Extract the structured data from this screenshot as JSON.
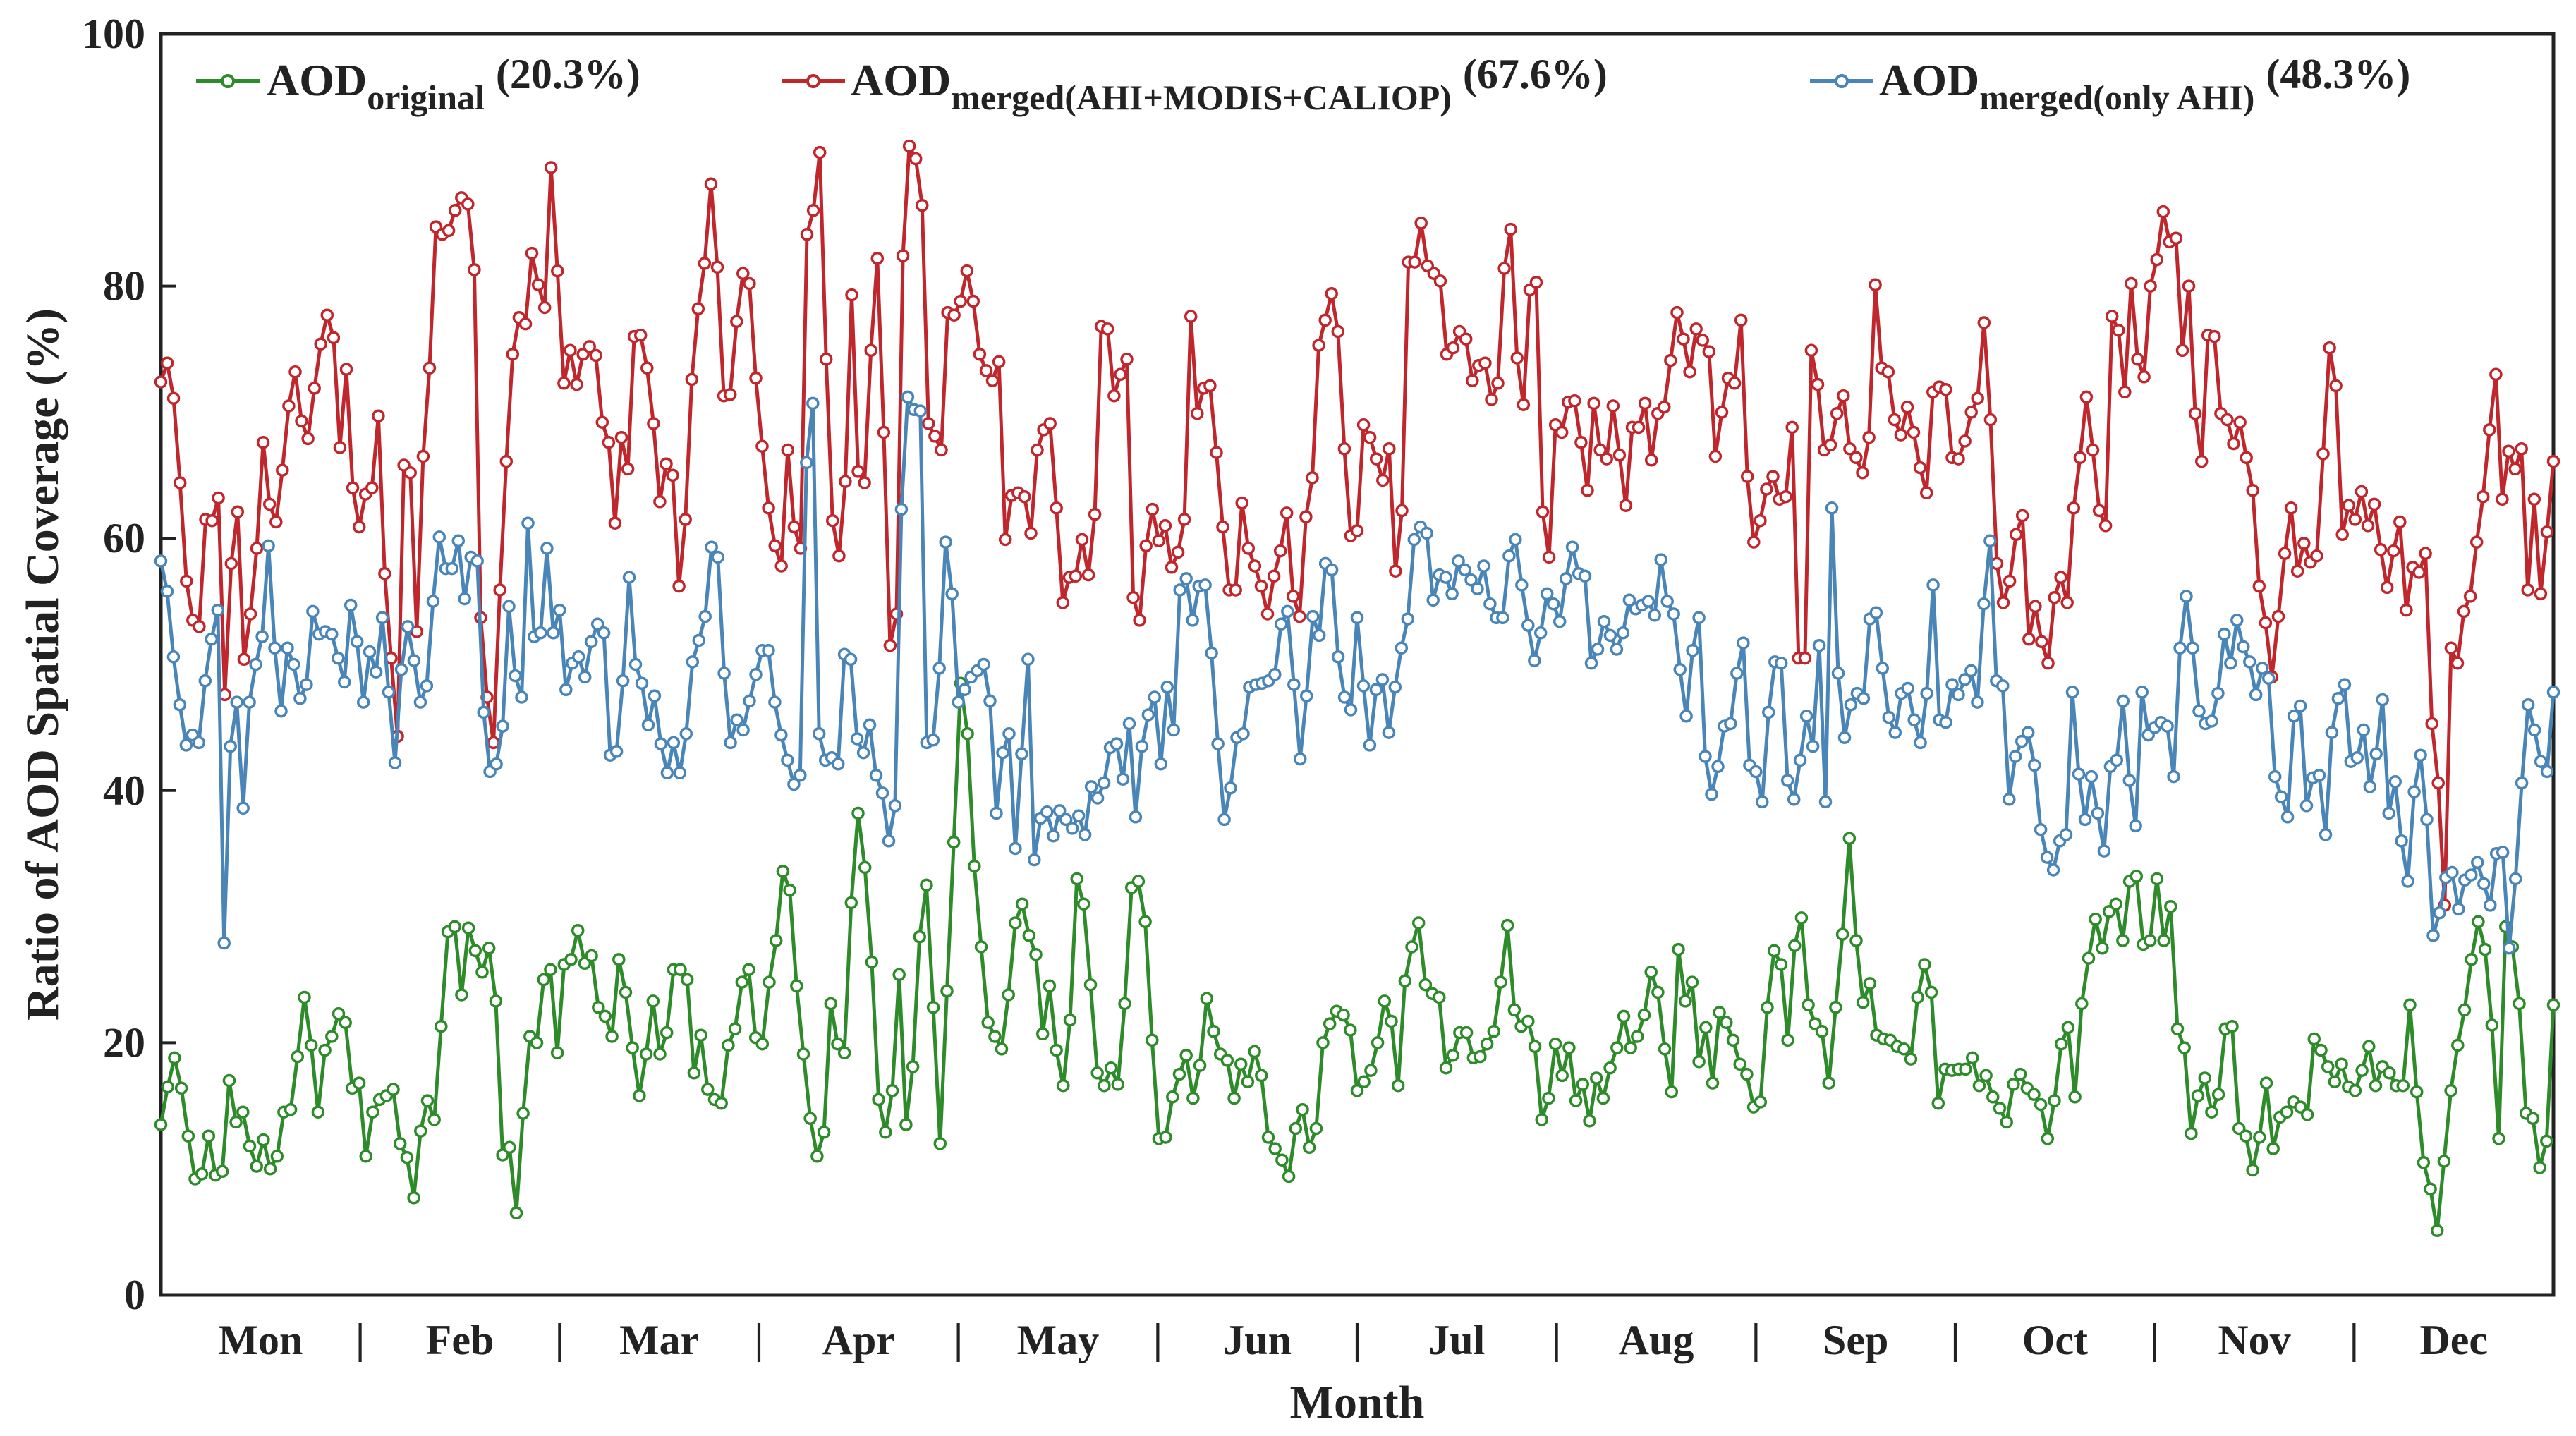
{
  "chart_data": {
    "type": "line",
    "title": "",
    "xlabel": "Month",
    "ylabel": "Ratio of AOD Spatial Coverage (%)",
    "ylim": [
      0,
      100
    ],
    "yticks": [
      "0",
      "20",
      "40",
      "60",
      "80",
      "100"
    ],
    "xlim": [
      0,
      365
    ],
    "month_labels": [
      "Mon",
      "Feb",
      "Mar",
      "Apr",
      "May",
      "Jun",
      "Jul",
      "Aug",
      "Sep",
      "Oct",
      "Nov",
      "Dec"
    ],
    "month_separator": "|",
    "legend_position": "top",
    "series": [
      {
        "name": "AOD original (20.3%)",
        "label_main": "AOD",
        "label_sub": "original",
        "label_pct": "(20.3%)",
        "color": "#2e8b2a",
        "values": [
          13.5,
          16.5,
          18.8,
          16.4,
          12.6,
          9.2,
          9.6,
          12.6,
          9.5,
          9.8,
          17.0,
          13.7,
          14.5,
          11.8,
          10.2,
          12.3,
          10.0,
          11.0,
          14.5,
          14.7,
          18.9,
          23.6,
          19.8,
          14.5,
          19.4,
          20.5,
          22.3,
          21.6,
          16.4,
          16.8,
          11.0,
          14.5,
          15.5,
          15.8,
          16.3,
          12.0,
          10.9,
          7.7,
          13.0,
          15.4,
          13.9,
          21.3,
          28.8,
          29.2,
          23.8,
          29.1,
          27.3,
          25.6,
          27.5,
          23.3,
          11.1,
          11.7,
          6.5,
          14.4,
          20.5,
          20.0,
          25.0,
          25.8,
          19.2,
          26.2,
          26.6,
          28.9,
          26.3,
          26.9,
          22.8,
          22.1,
          20.5,
          26.6,
          24.0,
          19.6,
          15.8,
          19.1,
          23.3,
          19.1,
          20.8,
          25.8,
          25.8,
          25.0,
          17.6,
          20.6,
          16.3,
          15.5,
          15.2,
          19.8,
          21.1,
          24.8,
          25.8,
          20.4,
          19.9,
          24.8,
          28.1,
          33.6,
          32.1,
          24.5,
          19.1,
          14.0,
          11.0,
          12.9,
          23.1,
          19.9,
          19.2,
          31.1,
          38.2,
          33.9,
          26.4,
          15.5,
          12.9,
          16.2,
          25.4,
          13.5,
          18.1,
          28.4,
          32.5,
          22.8,
          12.0,
          24.1,
          35.9,
          48.5,
          44.5,
          34.0,
          27.6,
          21.6,
          20.5,
          19.5,
          23.8,
          29.5,
          31.0,
          28.5,
          27.0,
          20.7,
          24.5,
          19.4,
          16.6,
          21.8,
          33.0,
          31.0,
          24.6,
          17.6,
          16.6,
          18.0,
          16.7,
          23.1,
          32.3,
          32.8,
          29.6,
          20.2,
          12.4,
          12.5,
          15.7,
          17.5,
          19.0,
          15.6,
          18.2,
          23.5,
          20.9,
          19.1,
          18.6,
          15.6,
          18.3,
          16.9,
          19.3,
          17.4,
          12.5,
          11.6,
          10.7,
          9.4,
          13.2,
          14.7,
          11.7,
          13.2,
          20.0,
          21.5,
          22.5,
          22.2,
          21.0,
          16.2,
          16.9,
          17.8,
          20.0,
          23.3,
          21.7,
          16.6,
          24.9,
          27.6,
          29.5,
          24.6,
          23.9,
          23.6,
          18.0,
          19.0,
          20.8,
          20.8,
          18.8,
          18.9,
          19.9,
          20.9,
          24.8,
          29.3,
          22.6,
          21.3,
          21.7,
          19.7,
          13.9,
          15.6,
          19.9,
          17.4,
          19.6,
          15.4,
          16.7,
          13.8,
          17.2,
          15.6,
          18.0,
          19.6,
          22.1,
          19.6,
          20.5,
          22.2,
          25.6,
          24.0,
          19.5,
          16.1,
          27.4,
          23.3,
          24.8,
          18.5,
          21.2,
          16.8,
          22.4,
          21.6,
          20.2,
          18.3,
          17.5,
          14.9,
          15.3,
          22.8,
          27.3,
          26.2,
          20.2,
          27.7,
          29.9,
          23.0,
          21.5,
          20.9,
          16.8,
          22.8,
          28.6,
          36.2,
          28.1,
          23.2,
          24.7,
          20.6,
          20.3,
          20.2,
          19.7,
          19.5,
          18.7,
          23.6,
          26.2,
          24.0,
          15.2,
          17.9,
          17.8,
          17.9,
          17.9,
          18.8,
          16.6,
          17.4,
          15.7,
          14.8,
          13.7,
          16.7,
          17.5,
          16.4,
          15.9,
          15.1,
          12.4,
          15.4,
          19.9,
          21.2,
          15.7,
          23.1,
          26.7,
          29.8,
          27.5,
          30.4,
          31.0,
          28.1,
          32.8,
          33.2,
          27.8,
          28.1,
          33.0,
          28.1,
          30.8,
          21.1,
          19.6,
          12.8,
          15.8,
          17.2,
          14.5,
          15.9,
          21.1,
          21.3,
          13.2,
          12.6,
          9.9,
          12.5,
          16.8,
          11.6,
          14.1,
          14.5,
          15.3,
          14.9,
          14.3,
          20.3,
          19.4,
          18.1,
          16.9,
          18.3,
          16.5,
          16.2,
          17.8,
          19.7,
          16.6,
          18.1,
          17.6,
          16.6,
          16.6,
          23.0,
          16.1,
          10.5,
          8.4,
          5.1,
          10.6,
          16.2,
          19.8,
          22.6,
          26.6,
          29.6,
          27.4,
          21.4,
          12.4,
          29.2,
          27.6,
          23.1,
          14.4,
          14.0,
          10.1,
          12.2,
          23.0
        ]
      },
      {
        "name": "AOD merged(AHI+MODIS+CALIOP) (67.6%)",
        "label_main": "AOD",
        "label_sub": "merged(AHI+MODIS+CALIOP)",
        "label_pct": "(67.6%)",
        "color": "#c0272d",
        "values": [
          72.4,
          73.9,
          71.1,
          64.4,
          56.6,
          53.5,
          53.0,
          61.5,
          61.4,
          63.2,
          47.6,
          58.0,
          62.1,
          50.4,
          54.0,
          59.2,
          67.6,
          62.7,
          61.3,
          65.4,
          70.5,
          73.2,
          69.3,
          67.9,
          71.9,
          75.4,
          77.7,
          75.9,
          67.2,
          73.4,
          64.0,
          60.9,
          63.5,
          64.0,
          69.7,
          57.2,
          50.5,
          44.3,
          65.8,
          65.2,
          52.6,
          66.5,
          73.5,
          84.7,
          84.1,
          84.4,
          86.0,
          87.0,
          86.5,
          81.3,
          53.7,
          47.4,
          43.8,
          55.9,
          66.1,
          74.6,
          77.5,
          77.0,
          82.6,
          80.1,
          78.3,
          89.4,
          81.2,
          72.3,
          74.9,
          72.2,
          74.6,
          75.2,
          74.5,
          69.2,
          67.6,
          61.2,
          68.0,
          65.5,
          76.0,
          76.1,
          73.5,
          69.1,
          62.9,
          65.9,
          65.0,
          56.2,
          61.5,
          72.6,
          78.2,
          81.8,
          88.1,
          81.5,
          71.3,
          71.4,
          77.2,
          81.0,
          80.2,
          72.7,
          67.3,
          62.4,
          59.4,
          57.8,
          67.0,
          60.9,
          59.2,
          84.1,
          86.0,
          90.6,
          74.2,
          61.4,
          58.6,
          64.5,
          79.3,
          65.3,
          64.4,
          74.9,
          82.2,
          68.4,
          51.5,
          54.0,
          82.4,
          91.1,
          90.1,
          86.4,
          69.1,
          68.1,
          67.0,
          77.9,
          77.7,
          78.8,
          81.2,
          78.8,
          74.6,
          73.3,
          72.5,
          74.0,
          59.9,
          63.4,
          63.6,
          63.3,
          60.4,
          67.0,
          68.6,
          69.1,
          62.4,
          54.9,
          56.9,
          57.0,
          59.9,
          57.1,
          61.9,
          76.8,
          76.6,
          71.3,
          73.0,
          74.2,
          55.3,
          53.5,
          59.4,
          62.3,
          59.8,
          61.0,
          57.7,
          58.9,
          61.5,
          77.6,
          69.9,
          71.9,
          72.1,
          66.8,
          60.9,
          55.9,
          55.9,
          62.8,
          59.2,
          57.8,
          56.2,
          54.0,
          57.0,
          59.0,
          62.0,
          55.4,
          53.8,
          61.7,
          64.8,
          75.3,
          77.3,
          79.4,
          76.4,
          67.1,
          60.2,
          60.6,
          69.0,
          68.0,
          66.3,
          64.6,
          67.1,
          57.4,
          62.2,
          81.9,
          81.9,
          85.0,
          81.6,
          81.0,
          80.4,
          74.6,
          75.1,
          76.4,
          75.8,
          72.5,
          73.7,
          73.9,
          71.0,
          72.3,
          81.4,
          84.5,
          74.3,
          70.6,
          79.7,
          80.3,
          62.1,
          58.5,
          69.0,
          68.4,
          70.8,
          70.9,
          67.6,
          63.8,
          70.7,
          67.0,
          66.3,
          70.5,
          66.6,
          62.6,
          68.8,
          68.8,
          70.7,
          66.2,
          69.9,
          70.4,
          74.1,
          77.9,
          75.8,
          73.2,
          76.6,
          75.7,
          74.8,
          66.5,
          70.0,
          72.7,
          72.3,
          77.3,
          64.9,
          59.7,
          61.4,
          63.9,
          64.9,
          63.1,
          63.3,
          68.8,
          50.5,
          50.5,
          74.9,
          72.2,
          67.0,
          67.4,
          69.9,
          71.3,
          67.1,
          66.4,
          65.2,
          68.0,
          80.1,
          73.5,
          73.2,
          69.4,
          68.2,
          70.4,
          68.4,
          65.6,
          63.6,
          71.6,
          72.0,
          71.8,
          66.4,
          66.3,
          67.7,
          70.0,
          71.1,
          77.1,
          69.4,
          58.0,
          54.9,
          56.6,
          60.3,
          61.8,
          52.0,
          54.6,
          51.8,
          50.1,
          55.3,
          56.9,
          54.9,
          62.4,
          66.4,
          71.2,
          67.0,
          62.2,
          61.0,
          77.6,
          76.5,
          71.6,
          80.2,
          74.2,
          72.8,
          80.0,
          82.1,
          85.9,
          83.5,
          83.8,
          74.9,
          80.0,
          69.9,
          66.1,
          76.1,
          76.0,
          69.9,
          69.4,
          67.5,
          69.2,
          66.4,
          63.8,
          56.2,
          53.3,
          49.0,
          53.8,
          58.8,
          62.4,
          57.4,
          59.6,
          58.1,
          58.6,
          66.7,
          75.1,
          72.1,
          60.3,
          62.6,
          61.5,
          63.7,
          61.0,
          62.7,
          59.1,
          56.1,
          59.0,
          61.3,
          54.3,
          57.7,
          57.3,
          58.8,
          45.3,
          40.6,
          30.9,
          51.3,
          50.1,
          54.2,
          55.4,
          59.7,
          63.3,
          68.6,
          73.0,
          63.1,
          66.9,
          65.5,
          67.1,
          55.9,
          63.1,
          55.6,
          60.5,
          66.1
        ]
      },
      {
        "name": "AOD merged(only AHI) (48.3%)",
        "label_main": "AOD",
        "label_sub": "merged(only AHI)",
        "label_pct": "(48.3%)",
        "color": "#4a85b8",
        "values": [
          58.2,
          55.8,
          50.6,
          46.8,
          43.6,
          44.4,
          43.8,
          48.7,
          52.0,
          54.3,
          27.9,
          43.5,
          47.0,
          38.6,
          47.0,
          50.0,
          52.2,
          59.4,
          51.3,
          46.3,
          51.3,
          50.0,
          47.3,
          48.4,
          54.2,
          52.4,
          52.6,
          52.4,
          50.5,
          48.6,
          54.7,
          51.8,
          47.0,
          51.0,
          49.4,
          53.7,
          47.8,
          42.2,
          49.6,
          53.0,
          50.3,
          47.0,
          48.3,
          55.0,
          60.1,
          57.6,
          57.6,
          59.8,
          55.2,
          58.5,
          58.2,
          46.2,
          41.5,
          42.1,
          45.1,
          54.6,
          49.1,
          47.4,
          61.2,
          52.2,
          52.5,
          59.2,
          52.5,
          54.3,
          48.0,
          50.1,
          50.6,
          49.0,
          51.8,
          53.2,
          52.5,
          42.8,
          43.1,
          48.7,
          56.9,
          50.0,
          48.5,
          45.2,
          47.5,
          43.7,
          41.4,
          43.8,
          41.4,
          44.5,
          50.2,
          51.9,
          53.8,
          59.3,
          58.5,
          49.3,
          43.8,
          45.6,
          44.8,
          47.1,
          49.2,
          51.1,
          51.1,
          47.0,
          44.4,
          42.4,
          40.5,
          41.2,
          66.0,
          70.7,
          44.5,
          42.4,
          42.6,
          42.1,
          50.8,
          50.4,
          44.1,
          43.0,
          45.2,
          41.2,
          39.8,
          36.0,
          38.8,
          62.3,
          71.2,
          70.2,
          70.1,
          43.8,
          44.0,
          49.7,
          59.7,
          55.6,
          47.0,
          48.0,
          49.0,
          49.5,
          50.0,
          47.1,
          38.2,
          43.0,
          44.5,
          35.4,
          42.9,
          50.4,
          34.5,
          37.8,
          38.3,
          36.4,
          38.4,
          37.7,
          37.0,
          38.0,
          36.5,
          40.3,
          39.4,
          40.6,
          43.4,
          43.7,
          40.9,
          45.3,
          37.9,
          43.5,
          46.0,
          47.4,
          42.1,
          48.2,
          44.8,
          55.9,
          56.8,
          53.5,
          56.2,
          56.3,
          50.9,
          43.7,
          37.7,
          40.2,
          44.2,
          44.5,
          48.2,
          48.4,
          48.5,
          48.7,
          49.2,
          53.2,
          54.2,
          48.4,
          42.5,
          47.5,
          53.8,
          52.3,
          58.0,
          57.5,
          50.6,
          47.4,
          46.4,
          53.7,
          48.3,
          43.6,
          48.0,
          48.8,
          44.6,
          48.2,
          51.3,
          53.6,
          59.9,
          60.9,
          60.4,
          55.1,
          57.1,
          56.9,
          55.6,
          58.2,
          57.5,
          56.7,
          56.0,
          57.8,
          54.8,
          53.7,
          53.7,
          58.6,
          59.9,
          56.3,
          53.1,
          50.3,
          52.5,
          55.6,
          54.8,
          53.4,
          56.8,
          59.3,
          57.2,
          57.0,
          50.1,
          51.2,
          53.4,
          52.3,
          51.2,
          52.5,
          55.1,
          54.4,
          54.7,
          55.0,
          53.9,
          58.3,
          55.0,
          54.0,
          49.6,
          45.9,
          51.1,
          53.7,
          42.7,
          39.7,
          41.9,
          45.1,
          45.3,
          49.3,
          51.7,
          42.0,
          41.5,
          39.1,
          46.2,
          50.2,
          50.1,
          40.8,
          39.3,
          42.4,
          45.9,
          43.5,
          51.5,
          39.1,
          62.4,
          49.3,
          44.2,
          46.8,
          47.7,
          47.3,
          53.6,
          54.1,
          49.7,
          45.8,
          44.6,
          47.7,
          48.1,
          45.6,
          43.8,
          47.7,
          56.3,
          45.6,
          45.4,
          48.4,
          47.6,
          48.8,
          49.5,
          47.0,
          54.8,
          59.8,
          48.7,
          48.3,
          39.3,
          42.7,
          43.9,
          44.6,
          42.0,
          36.9,
          34.7,
          33.7,
          36.0,
          36.5,
          47.8,
          41.3,
          37.7,
          41.1,
          38.2,
          35.2,
          41.9,
          42.4,
          47.1,
          40.8,
          37.2,
          47.8,
          44.4,
          45.0,
          45.4,
          45.1,
          41.1,
          51.3,
          55.4,
          51.3,
          46.3,
          45.3,
          45.5,
          47.7,
          52.4,
          50.1,
          53.5,
          51.4,
          50.2,
          47.6,
          49.7,
          48.9,
          41.1,
          39.5,
          37.9,
          45.9,
          46.7,
          38.8,
          41.0,
          41.2,
          36.5,
          44.6,
          47.3,
          48.4,
          42.3,
          42.6,
          44.8,
          40.3,
          42.9,
          47.2,
          38.2,
          40.7,
          36.0,
          32.8,
          39.9,
          42.8,
          37.7,
          28.5,
          30.3,
          33.1,
          33.5,
          30.6,
          32.9,
          33.3,
          34.3,
          32.6,
          30.9,
          35.0,
          35.1,
          27.5,
          33.0,
          40.6,
          46.8,
          44.8,
          42.3,
          41.5,
          47.8
        ]
      }
    ]
  }
}
